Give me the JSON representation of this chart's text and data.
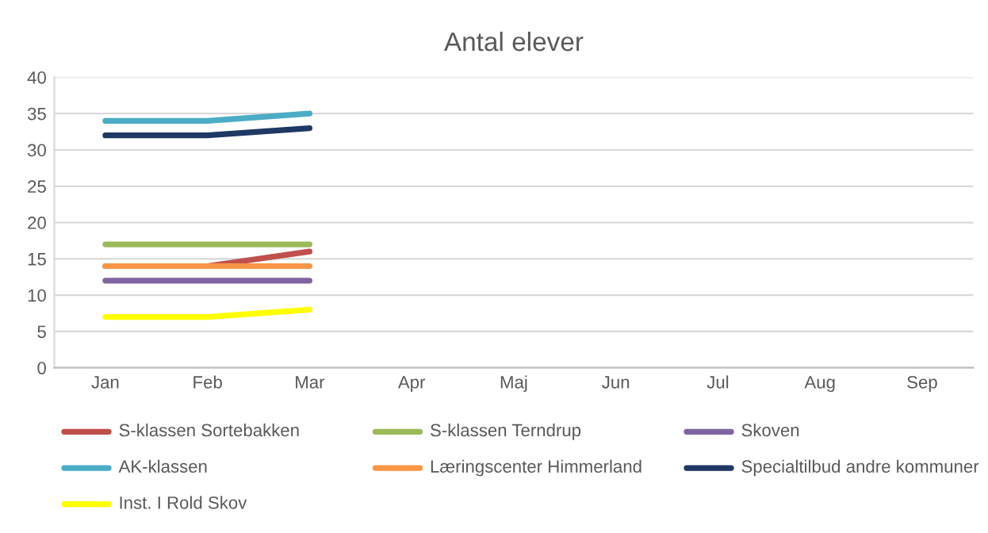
{
  "chart_data": {
    "type": "line",
    "title": "Antal elever",
    "categories": [
      "Jan",
      "Feb",
      "Mar",
      "Apr",
      "Maj",
      "Jun",
      "Jul",
      "Aug",
      "Sep"
    ],
    "series": [
      {
        "name": "S-klassen Sortebakken",
        "color": "#c0504d",
        "values": [
          14,
          14,
          16,
          null,
          null,
          null,
          null,
          null,
          null
        ]
      },
      {
        "name": "S-klassen Terndrup",
        "color": "#9bbb59",
        "values": [
          17,
          17,
          17,
          null,
          null,
          null,
          null,
          null,
          null
        ]
      },
      {
        "name": "Skoven",
        "color": "#8064a2",
        "values": [
          12,
          12,
          12,
          null,
          null,
          null,
          null,
          null,
          null
        ]
      },
      {
        "name": "AK-klassen",
        "color": "#4bacc6",
        "values": [
          34,
          34,
          35,
          null,
          null,
          null,
          null,
          null,
          null
        ]
      },
      {
        "name": "Læringscenter Himmerland",
        "color": "#f79646",
        "values": [
          14,
          14,
          14,
          null,
          null,
          null,
          null,
          null,
          null
        ]
      },
      {
        "name": "Specialtilbud andre kommuner",
        "color": "#1f3864",
        "values": [
          32,
          32,
          33,
          null,
          null,
          null,
          null,
          null,
          null
        ]
      },
      {
        "name": "Inst. I Rold Skov",
        "color": "#ffff00",
        "values": [
          7,
          7,
          8,
          null,
          null,
          null,
          null,
          null,
          null
        ]
      }
    ],
    "ylim": [
      0,
      40
    ],
    "yticks": [
      0,
      5,
      10,
      15,
      20,
      25,
      30,
      35,
      40
    ],
    "grid": "y",
    "legend": "bottom",
    "marker": "none",
    "line_style": "solid"
  }
}
